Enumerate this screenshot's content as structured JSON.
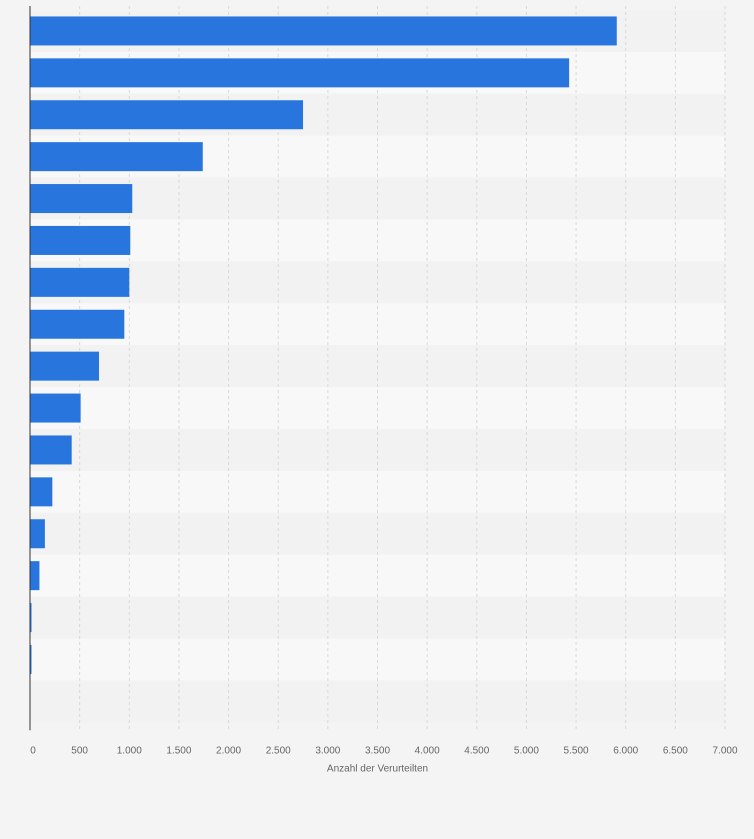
{
  "chart_data": {
    "type": "bar",
    "orientation": "horizontal",
    "categories": [
      "",
      "",
      "",
      "",
      "",
      "",
      "",
      "",
      "",
      "",
      "",
      "",
      "",
      "",
      "",
      "",
      ""
    ],
    "values": [
      5910,
      5430,
      2750,
      1740,
      1030,
      1010,
      1000,
      950,
      695,
      510,
      420,
      225,
      150,
      95,
      15,
      10,
      0
    ],
    "title": "",
    "xlabel": "Anzahl der Verurteilten",
    "ylabel": "",
    "xlim": [
      0,
      7000
    ],
    "x_ticks": [
      0,
      500,
      1000,
      1500,
      2000,
      2500,
      3000,
      3500,
      4000,
      4500,
      5000,
      5500,
      6000,
      6500,
      7000
    ],
    "x_tick_labels": [
      "0",
      "500",
      "1.000",
      "1.500",
      "2.000",
      "2.500",
      "3.000",
      "3.500",
      "4.000",
      "4.500",
      "5.000",
      "5.500",
      "6.000",
      "6.500",
      "7.000"
    ],
    "grid": true,
    "legend": "none",
    "colors": {
      "bar": "#2876dd",
      "band_dark": "#f2f2f2",
      "band_light": "#f8f8f8",
      "grid": "#d9d9d9",
      "axis": "#333333",
      "text": "#666666"
    }
  }
}
